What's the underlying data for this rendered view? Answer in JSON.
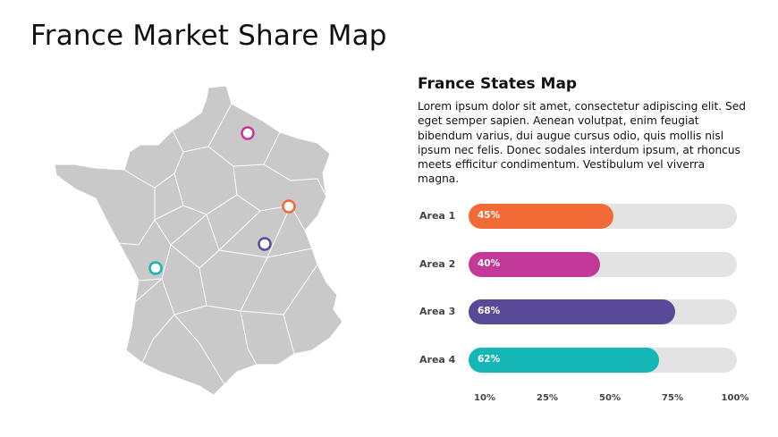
{
  "slide": {
    "title": "France Market Share Map",
    "subtitle": "France States Map",
    "description": "Lorem ipsum dolor sit amet, consectetur adipiscing elit. Sed eget semper sapien. Aenean volutpat, enim feugiat bibendum varius, dui augue cursus odio, quis mollis nisl ipsum nec felis. Donec sodales interdum ipsum, at rhoncus meets efficitur condimentum. Vestibulum vel viverra magna."
  },
  "map": {
    "markers": [
      {
        "name": "marker-1",
        "color": "#c2399a"
      },
      {
        "name": "marker-2",
        "color": "#f26a35"
      },
      {
        "name": "marker-3",
        "color": "#5a4a9b"
      },
      {
        "name": "marker-4",
        "color": "#17b5b5"
      }
    ]
  },
  "chart_data": {
    "type": "bar",
    "orientation": "horizontal",
    "categories": [
      "Area 1",
      "Area 2",
      "Area 3",
      "Area 4"
    ],
    "values": [
      45,
      40,
      68,
      62
    ],
    "value_labels": [
      "45%",
      "40%",
      "68%",
      "62%"
    ],
    "colors": [
      "#f26a35",
      "#c2399a",
      "#594a99",
      "#14b7b5"
    ],
    "x_ticks": [
      "10%",
      "25%",
      "50%",
      "75%",
      "100%"
    ],
    "xlim": [
      0,
      100
    ]
  }
}
